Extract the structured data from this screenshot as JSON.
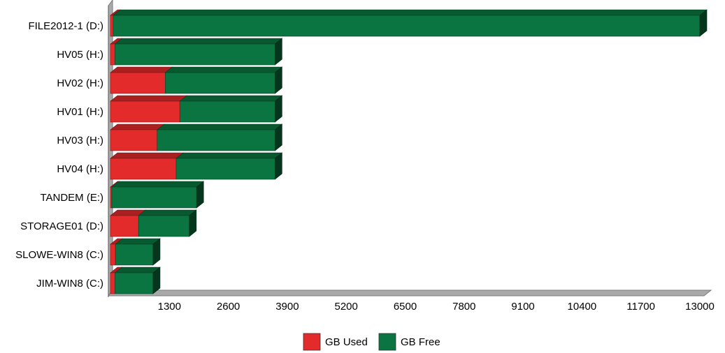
{
  "chart_data": {
    "type": "bar",
    "orientation": "horizontal",
    "stacked": true,
    "three_d": true,
    "categories": [
      "FILE2012-1 (D:)",
      "HV05 (H:)",
      "HV02 (H:)",
      "HV01 (H:)",
      "HV03 (H:)",
      "HV04 (H:)",
      "TANDEM (E:)",
      "STORAGE01 (D:)",
      "SLOWE-WIN8 (C:)",
      "JIM-WIN8 (C:)"
    ],
    "series": [
      {
        "name": "GB Used",
        "color": "#e32b2b",
        "values": [
          60,
          100,
          1210,
          1530,
          1030,
          1450,
          30,
          620,
          110,
          100
        ]
      },
      {
        "name": "GB Free",
        "color": "#0a7540",
        "values": [
          12940,
          3530,
          2420,
          2100,
          2600,
          2180,
          1870,
          1120,
          830,
          840
        ]
      }
    ],
    "xlim": [
      0,
      13000
    ],
    "xticks": [
      "1300",
      "2600",
      "3900",
      "5200",
      "6500",
      "7800",
      "9100",
      "10400",
      "11700",
      "13000"
    ],
    "grid": false,
    "legend_position": "bottom"
  }
}
